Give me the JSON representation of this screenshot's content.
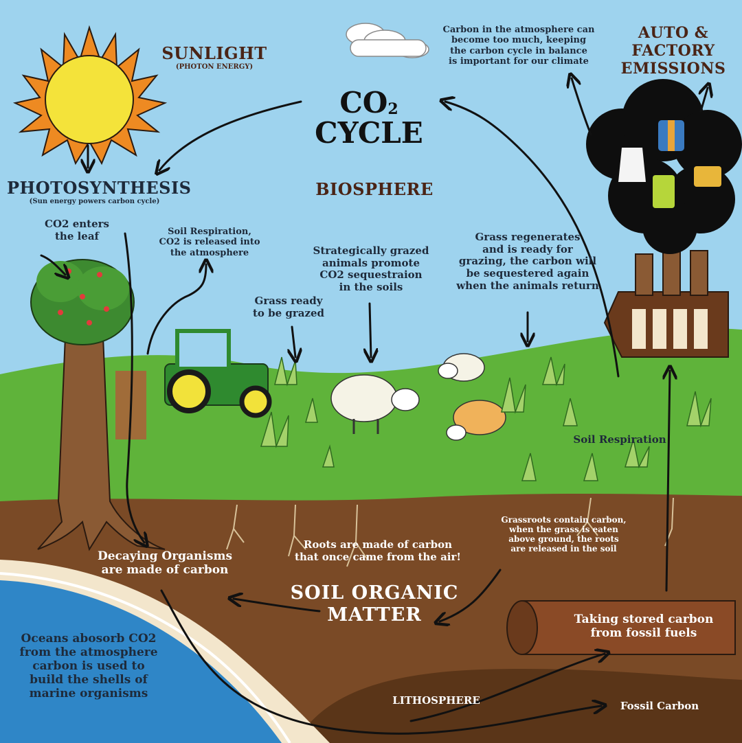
{
  "title": {
    "line1": "CO",
    "sub": "2",
    "line2": "CYCLE"
  },
  "sunlight": {
    "title": "SUNLIGHT",
    "subtitle": "(PHOTON ENERGY)"
  },
  "photosynthesis": {
    "title": "PHOTOSYNTHESIS",
    "subtitle": "(Sun energy powers carbon cycle)"
  },
  "biosphere": "BIOSPHERE",
  "auto_emissions": {
    "line1": "AUTO &",
    "line2": "FACTORY",
    "line3": "EMISSIONS"
  },
  "atmosphere_note": {
    "line1": "Carbon in the atmosphere can",
    "line2": "become too much, keeping",
    "line3": "the carbon cycle in balance",
    "line4": "is important for our climate"
  },
  "co2_leaf": {
    "line1": "CO2 enters",
    "line2": "the leaf"
  },
  "soil_resp_top": {
    "line1": "Soil Respiration,",
    "line2": "CO2 is released into",
    "line3": "the atmosphere"
  },
  "grass_ready": {
    "line1": "Grass ready",
    "line2": "to be grazed"
  },
  "grazed_animals": {
    "line1": "Strategically grazed",
    "line2": "animals promote",
    "line3": "CO2 sequestraion",
    "line4": "in the soils"
  },
  "grass_regen": {
    "line1": "Grass regenerates",
    "line2": "and is ready for",
    "line3": "grazing, the carbon will",
    "line4": "be sequestered again",
    "line5": "when the animals return"
  },
  "soil_resp_right": "Soil Respiration",
  "decaying": {
    "line1": "Decaying Organisms",
    "line2": "are made of carbon"
  },
  "roots": {
    "line1": "Roots are made of carbon",
    "line2": "that once came from the air!"
  },
  "grassroots": {
    "line1": "Grassroots contain carbon,",
    "line2": "when the grass is eaten",
    "line3": "above ground, the roots",
    "line4": "are released in the soil"
  },
  "soil_organic": {
    "line1": "SOIL ORGANIC",
    "line2": "MATTER"
  },
  "fossil_fuels": {
    "line1": "Taking stored carbon",
    "line2": "from fossil fuels"
  },
  "oceans": {
    "line1": "Oceans abosorb CO2",
    "line2": "from the atmosphere",
    "line3": "carbon is used to",
    "line4": "build the shells of",
    "line5": "marine organisms"
  },
  "lithosphere": "LITHOSPHERE",
  "fossil_carbon": "Fossil Carbon",
  "colors": {
    "sky": "#9ed3ee",
    "grass": "#5fb33a",
    "soil": "#7a4a26",
    "ocean": "#2f86c7",
    "sun": "#f4e33a",
    "sun_rays": "#ee8a22",
    "smoke": "#0e0e0e",
    "title_text": "#4a2416"
  }
}
